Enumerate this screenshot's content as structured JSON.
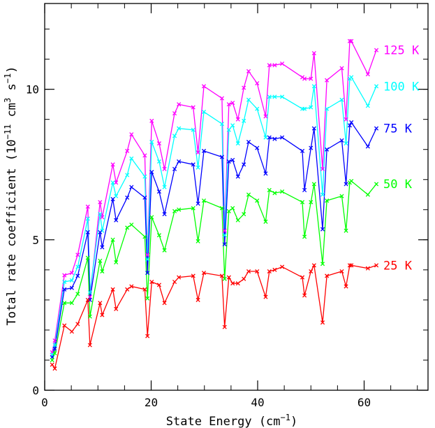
{
  "chart_data": {
    "type": "line",
    "xlabel": "State Energy (cm",
    "xlabel_sup": "−1",
    "xlabel_end": ")",
    "ylabel": "Total rate coefficient (10",
    "ylabel_sup1": "−11",
    "ylabel_mid": " cm",
    "ylabel_sup2": "3",
    "ylabel_mid2": " s",
    "ylabel_sup3": "−1",
    "ylabel_end": ")",
    "xlim": [
      0,
      72
    ],
    "ylim": [
      0,
      12.85
    ],
    "x_ticks": [
      0,
      20,
      40,
      60
    ],
    "x_tick_labels": [
      "0",
      "20",
      "40",
      "60"
    ],
    "y_ticks": [
      0,
      5,
      10
    ],
    "y_tick_labels": [
      "0",
      "5",
      "10"
    ],
    "marker": "x",
    "x": [
      1.4,
      1.9,
      3.7,
      5.1,
      6.2,
      8.1,
      8.5,
      10.4,
      10.8,
      12.8,
      13.4,
      15.5,
      16.3,
      18.8,
      19.3,
      20.1,
      21.5,
      22.5,
      24.4,
      25.2,
      27.9,
      28.8,
      29.9,
      33.3,
      33.8,
      34.6,
      35.3,
      36.3,
      37.4,
      38.3,
      39.9,
      41.5,
      42.2,
      43.2,
      44.6,
      48.4,
      48.8,
      50.0,
      50.6,
      52.2,
      53.0,
      55.8,
      56.6,
      57.3,
      57.6,
      60.7,
      62.3
    ],
    "series": [
      {
        "name": "125 K",
        "color": "#ff00ff",
        "values": [
          1.26,
          1.65,
          3.82,
          3.9,
          4.5,
          6.1,
          3.1,
          6.25,
          5.75,
          7.5,
          6.9,
          7.95,
          8.5,
          7.8,
          4.5,
          8.95,
          8.2,
          7.35,
          9.2,
          9.5,
          9.4,
          7.9,
          10.1,
          9.7,
          5.3,
          9.5,
          9.55,
          9.0,
          10.05,
          10.6,
          10.2,
          9.1,
          10.8,
          10.8,
          10.85,
          10.4,
          10.35,
          10.35,
          11.2,
          7.35,
          10.3,
          10.7,
          9.0,
          11.6,
          11.6,
          10.5,
          11.3
        ]
      },
      {
        "name": "100 K",
        "color": "#00ffff",
        "values": [
          1.18,
          1.5,
          3.6,
          3.65,
          4.1,
          5.7,
          3.25,
          5.85,
          5.3,
          6.9,
          6.45,
          7.15,
          7.7,
          7.1,
          4.35,
          8.25,
          7.6,
          6.75,
          8.45,
          8.7,
          8.65,
          7.4,
          9.25,
          8.85,
          5.15,
          8.65,
          8.8,
          8.2,
          8.95,
          9.65,
          9.35,
          8.4,
          9.75,
          9.75,
          9.75,
          9.35,
          9.35,
          9.4,
          10.1,
          6.5,
          9.35,
          9.65,
          8.2,
          10.35,
          10.4,
          9.45,
          10.1
        ]
      },
      {
        "name": "75 K",
        "color": "#0000ff",
        "values": [
          1.1,
          1.38,
          3.35,
          3.4,
          3.8,
          5.25,
          3.0,
          5.25,
          4.75,
          6.35,
          5.65,
          6.4,
          6.75,
          6.4,
          3.9,
          7.25,
          6.6,
          5.85,
          7.35,
          7.6,
          7.5,
          6.2,
          7.95,
          7.75,
          4.85,
          7.6,
          7.65,
          7.1,
          7.5,
          8.25,
          8.05,
          7.2,
          8.4,
          8.35,
          8.4,
          7.95,
          6.65,
          8.05,
          8.7,
          5.35,
          8.0,
          8.3,
          6.85,
          8.8,
          8.9,
          8.1,
          8.7
        ]
      },
      {
        "name": "50 K",
        "color": "#00ff00",
        "values": [
          1.0,
          1.23,
          2.9,
          2.9,
          3.2,
          4.4,
          2.45,
          4.3,
          3.95,
          5.0,
          4.25,
          5.4,
          5.5,
          5.1,
          3.05,
          5.75,
          5.15,
          4.65,
          5.95,
          6.0,
          6.05,
          4.95,
          6.3,
          6.05,
          3.7,
          5.95,
          6.05,
          5.65,
          5.85,
          6.5,
          6.3,
          5.6,
          6.65,
          6.55,
          6.6,
          6.25,
          5.1,
          6.25,
          6.85,
          4.2,
          6.3,
          6.45,
          5.3,
          6.9,
          6.95,
          6.5,
          6.85
        ]
      },
      {
        "name": "25 K",
        "color": "#ff0000",
        "values": [
          0.85,
          0.72,
          2.15,
          1.95,
          2.2,
          3.0,
          1.5,
          2.9,
          2.5,
          3.35,
          2.7,
          3.35,
          3.45,
          3.35,
          1.8,
          3.6,
          3.5,
          2.9,
          3.6,
          3.75,
          3.8,
          3.0,
          3.9,
          3.8,
          2.1,
          3.75,
          3.55,
          3.55,
          3.7,
          3.95,
          3.95,
          3.1,
          3.95,
          4.0,
          4.1,
          3.75,
          3.15,
          3.95,
          4.15,
          2.25,
          3.8,
          3.95,
          3.45,
          4.15,
          4.15,
          4.05,
          4.15
        ]
      }
    ]
  }
}
